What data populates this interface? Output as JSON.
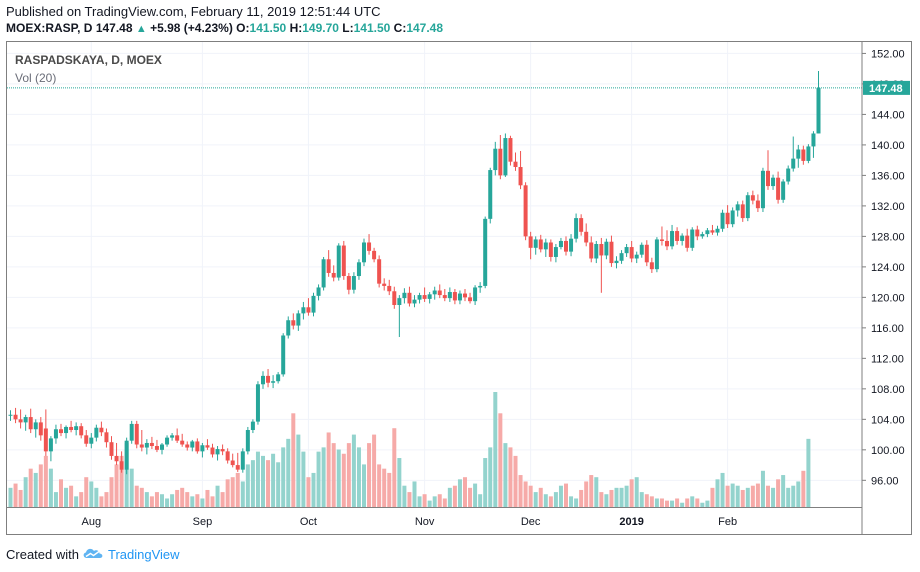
{
  "header": {
    "published": "Published on TradingView.com, February 11, 2019 12:51:44 UTC",
    "symbol": "MOEX:RASP, D",
    "last": "147.48",
    "change_arrow": "▲",
    "change": "+5.98 (+4.23%)",
    "o_label": "O:",
    "o": "141.50",
    "h_label": "H:",
    "h": "149.70",
    "l_label": "L:",
    "l": "141.50",
    "c_label": "C:",
    "c": "147.48"
  },
  "footer": {
    "created_with": "Created with",
    "brand": "TradingView",
    "logo_icon": "tradingview-cloud-icon"
  },
  "colors": {
    "up": "#26a69a",
    "down": "#ef5350",
    "up_volume": "#93d3cd",
    "down_volume": "#f6aaa8",
    "grid": "#f0f3fa",
    "last_price_line": "#26a69a"
  },
  "chart_data": {
    "type": "candlestick",
    "title": "RASPADSKAYA, D, MOEX",
    "indicator": "Vol (20)",
    "y_ticks": [
      "96.00",
      "100.00",
      "104.00",
      "108.00",
      "112.00",
      "116.00",
      "120.00",
      "124.00",
      "128.00",
      "132.00",
      "136.00",
      "140.00",
      "144.00",
      "148.00",
      "152.00"
    ],
    "ylim": [
      92.5,
      153.5
    ],
    "last_price_label": "147.48",
    "last_price": 147.48,
    "x_labels": [
      {
        "label": "Aug",
        "index": 16
      },
      {
        "label": "Sep",
        "index": 38
      },
      {
        "label": "Oct",
        "index": 59
      },
      {
        "label": "Nov",
        "index": 82
      },
      {
        "label": "Dec",
        "index": 103
      },
      {
        "label": "2019",
        "index": 123,
        "bold": true
      },
      {
        "label": "Feb",
        "index": 142
      }
    ],
    "candles": [
      {
        "o": 104.5,
        "h": 105.2,
        "l": 103.8,
        "c": 104.6
      },
      {
        "o": 104.6,
        "h": 105.5,
        "l": 103.5,
        "c": 104.0
      },
      {
        "o": 104.0,
        "h": 105.3,
        "l": 102.8,
        "c": 103.6
      },
      {
        "o": 103.6,
        "h": 104.6,
        "l": 102.5,
        "c": 104.3
      },
      {
        "o": 104.3,
        "h": 105.4,
        "l": 102.2,
        "c": 102.7
      },
      {
        "o": 102.7,
        "h": 104.0,
        "l": 101.6,
        "c": 103.6
      },
      {
        "o": 103.6,
        "h": 104.3,
        "l": 101.2,
        "c": 101.9
      },
      {
        "o": 102.8,
        "h": 105.3,
        "l": 99.2,
        "c": 99.8
      },
      {
        "o": 99.8,
        "h": 101.8,
        "l": 98.5,
        "c": 101.5
      },
      {
        "o": 101.5,
        "h": 103.3,
        "l": 100.8,
        "c": 102.7
      },
      {
        "o": 102.7,
        "h": 103.4,
        "l": 101.8,
        "c": 102.2
      },
      {
        "o": 102.2,
        "h": 103.2,
        "l": 101.5,
        "c": 103.0
      },
      {
        "o": 103.0,
        "h": 103.8,
        "l": 102.3,
        "c": 102.6
      },
      {
        "o": 102.6,
        "h": 103.6,
        "l": 101.9,
        "c": 103.1
      },
      {
        "o": 103.1,
        "h": 103.5,
        "l": 101.5,
        "c": 101.9
      },
      {
        "o": 101.9,
        "h": 102.6,
        "l": 100.4,
        "c": 100.8
      },
      {
        "o": 100.8,
        "h": 102.2,
        "l": 100.2,
        "c": 101.6
      },
      {
        "o": 101.6,
        "h": 103.3,
        "l": 101.1,
        "c": 102.9
      },
      {
        "o": 102.9,
        "h": 103.7,
        "l": 101.8,
        "c": 102.3
      },
      {
        "o": 102.3,
        "h": 102.8,
        "l": 100.3,
        "c": 101.0
      },
      {
        "o": 101.0,
        "h": 101.8,
        "l": 98.7,
        "c": 99.2
      },
      {
        "o": 99.2,
        "h": 100.9,
        "l": 98.0,
        "c": 98.5
      },
      {
        "o": 98.5,
        "h": 99.8,
        "l": 97.0,
        "c": 97.4
      },
      {
        "o": 97.4,
        "h": 101.6,
        "l": 96.8,
        "c": 101.2
      },
      {
        "o": 101.2,
        "h": 103.8,
        "l": 100.8,
        "c": 103.4
      },
      {
        "o": 103.4,
        "h": 103.8,
        "l": 100.2,
        "c": 100.7
      },
      {
        "o": 100.7,
        "h": 102.6,
        "l": 99.8,
        "c": 100.3
      },
      {
        "o": 100.3,
        "h": 101.4,
        "l": 99.4,
        "c": 100.9
      },
      {
        "o": 100.9,
        "h": 101.7,
        "l": 100.1,
        "c": 100.5
      },
      {
        "o": 100.5,
        "h": 101.3,
        "l": 99.7,
        "c": 100.0
      },
      {
        "o": 100.0,
        "h": 100.9,
        "l": 99.4,
        "c": 100.7
      },
      {
        "o": 100.7,
        "h": 101.9,
        "l": 100.4,
        "c": 101.6
      },
      {
        "o": 101.6,
        "h": 102.2,
        "l": 101.2,
        "c": 101.9
      },
      {
        "o": 101.9,
        "h": 102.8,
        "l": 100.9,
        "c": 101.2
      },
      {
        "o": 101.2,
        "h": 102.1,
        "l": 100.4,
        "c": 100.7
      },
      {
        "o": 100.7,
        "h": 101.1,
        "l": 99.9,
        "c": 100.3
      },
      {
        "o": 100.3,
        "h": 101.3,
        "l": 99.8,
        "c": 101.1
      },
      {
        "o": 101.1,
        "h": 101.5,
        "l": 99.5,
        "c": 99.8
      },
      {
        "o": 99.8,
        "h": 100.9,
        "l": 99.0,
        "c": 100.6
      },
      {
        "o": 100.6,
        "h": 101.4,
        "l": 100.0,
        "c": 100.3
      },
      {
        "o": 100.3,
        "h": 100.8,
        "l": 99.0,
        "c": 99.4
      },
      {
        "o": 99.4,
        "h": 100.5,
        "l": 98.6,
        "c": 100.1
      },
      {
        "o": 100.1,
        "h": 100.7,
        "l": 99.3,
        "c": 99.8
      },
      {
        "o": 99.8,
        "h": 100.2,
        "l": 98.2,
        "c": 98.6
      },
      {
        "o": 98.6,
        "h": 99.5,
        "l": 97.7,
        "c": 98.0
      },
      {
        "o": 98.0,
        "h": 99.6,
        "l": 97.1,
        "c": 97.4
      },
      {
        "o": 97.4,
        "h": 100.2,
        "l": 97.0,
        "c": 99.8
      },
      {
        "o": 99.8,
        "h": 103.0,
        "l": 99.4,
        "c": 102.6
      },
      {
        "o": 102.6,
        "h": 104.0,
        "l": 102.2,
        "c": 103.7
      },
      {
        "o": 103.7,
        "h": 109.0,
        "l": 103.3,
        "c": 108.6
      },
      {
        "o": 108.6,
        "h": 110.3,
        "l": 108.0,
        "c": 109.7
      },
      {
        "o": 109.7,
        "h": 110.6,
        "l": 108.2,
        "c": 108.8
      },
      {
        "o": 108.8,
        "h": 109.8,
        "l": 108.1,
        "c": 109.0
      },
      {
        "o": 109.0,
        "h": 110.2,
        "l": 108.7,
        "c": 109.9
      },
      {
        "o": 109.9,
        "h": 115.3,
        "l": 109.6,
        "c": 115.0
      },
      {
        "o": 115.0,
        "h": 117.5,
        "l": 114.6,
        "c": 117.0
      },
      {
        "o": 117.0,
        "h": 117.9,
        "l": 115.8,
        "c": 116.3
      },
      {
        "o": 116.3,
        "h": 118.3,
        "l": 115.6,
        "c": 117.9
      },
      {
        "o": 117.9,
        "h": 119.4,
        "l": 117.1,
        "c": 118.7
      },
      {
        "o": 118.7,
        "h": 119.9,
        "l": 117.6,
        "c": 118.0
      },
      {
        "o": 118.0,
        "h": 120.6,
        "l": 117.5,
        "c": 120.2
      },
      {
        "o": 120.2,
        "h": 121.7,
        "l": 119.6,
        "c": 121.3
      },
      {
        "o": 121.3,
        "h": 125.3,
        "l": 120.9,
        "c": 125.0
      },
      {
        "o": 125.0,
        "h": 126.2,
        "l": 122.7,
        "c": 123.2
      },
      {
        "o": 123.2,
        "h": 124.2,
        "l": 122.1,
        "c": 122.6
      },
      {
        "o": 122.6,
        "h": 127.1,
        "l": 122.2,
        "c": 126.8
      },
      {
        "o": 126.8,
        "h": 127.4,
        "l": 122.3,
        "c": 122.8
      },
      {
        "o": 122.8,
        "h": 123.2,
        "l": 120.4,
        "c": 121.0
      },
      {
        "o": 121.0,
        "h": 123.3,
        "l": 120.5,
        "c": 122.8
      },
      {
        "o": 122.8,
        "h": 125.0,
        "l": 122.3,
        "c": 124.6
      },
      {
        "o": 124.6,
        "h": 127.7,
        "l": 124.1,
        "c": 127.2
      },
      {
        "o": 127.2,
        "h": 128.3,
        "l": 125.6,
        "c": 126.1
      },
      {
        "o": 126.1,
        "h": 126.5,
        "l": 124.6,
        "c": 125.0
      },
      {
        "o": 125.0,
        "h": 125.5,
        "l": 121.3,
        "c": 121.8
      },
      {
        "o": 121.8,
        "h": 122.5,
        "l": 120.9,
        "c": 121.5
      },
      {
        "o": 121.5,
        "h": 122.3,
        "l": 120.3,
        "c": 120.8
      },
      {
        "o": 120.8,
        "h": 121.4,
        "l": 118.5,
        "c": 119.0
      },
      {
        "o": 119.0,
        "h": 120.3,
        "l": 114.8,
        "c": 119.9
      },
      {
        "o": 119.9,
        "h": 121.2,
        "l": 119.2,
        "c": 120.6
      },
      {
        "o": 120.6,
        "h": 121.4,
        "l": 118.8,
        "c": 119.2
      },
      {
        "o": 119.2,
        "h": 120.3,
        "l": 118.7,
        "c": 119.7
      },
      {
        "o": 119.7,
        "h": 120.6,
        "l": 119.2,
        "c": 120.3
      },
      {
        "o": 120.3,
        "h": 121.3,
        "l": 119.4,
        "c": 119.8
      },
      {
        "o": 119.8,
        "h": 120.7,
        "l": 119.2,
        "c": 120.4
      },
      {
        "o": 120.4,
        "h": 121.4,
        "l": 119.7,
        "c": 120.9
      },
      {
        "o": 120.9,
        "h": 121.7,
        "l": 119.9,
        "c": 120.3
      },
      {
        "o": 120.3,
        "h": 121.1,
        "l": 119.5,
        "c": 119.9
      },
      {
        "o": 119.9,
        "h": 121.3,
        "l": 119.4,
        "c": 120.7
      },
      {
        "o": 120.7,
        "h": 121.1,
        "l": 119.1,
        "c": 119.6
      },
      {
        "o": 119.6,
        "h": 120.9,
        "l": 119.1,
        "c": 120.5
      },
      {
        "o": 120.5,
        "h": 121.1,
        "l": 119.5,
        "c": 120.0
      },
      {
        "o": 120.0,
        "h": 120.6,
        "l": 119.2,
        "c": 119.5
      },
      {
        "o": 119.5,
        "h": 121.6,
        "l": 119.0,
        "c": 121.3
      },
      {
        "o": 121.3,
        "h": 122.0,
        "l": 120.6,
        "c": 121.5
      },
      {
        "o": 121.5,
        "h": 130.6,
        "l": 121.2,
        "c": 130.3
      },
      {
        "o": 130.3,
        "h": 137.0,
        "l": 129.7,
        "c": 136.7
      },
      {
        "o": 136.7,
        "h": 140.4,
        "l": 136.0,
        "c": 139.5
      },
      {
        "o": 139.5,
        "h": 141.3,
        "l": 135.5,
        "c": 136.0
      },
      {
        "o": 136.0,
        "h": 141.5,
        "l": 135.8,
        "c": 140.9
      },
      {
        "o": 140.9,
        "h": 141.2,
        "l": 137.3,
        "c": 137.8
      },
      {
        "o": 137.8,
        "h": 139.0,
        "l": 136.6,
        "c": 137.1
      },
      {
        "o": 137.1,
        "h": 139.2,
        "l": 134.2,
        "c": 134.7
      },
      {
        "o": 134.7,
        "h": 135.1,
        "l": 127.5,
        "c": 128.0
      },
      {
        "o": 128.0,
        "h": 128.6,
        "l": 125.0,
        "c": 126.5
      },
      {
        "o": 126.5,
        "h": 128.0,
        "l": 125.6,
        "c": 127.6
      },
      {
        "o": 127.6,
        "h": 128.2,
        "l": 125.9,
        "c": 126.3
      },
      {
        "o": 126.3,
        "h": 127.7,
        "l": 125.3,
        "c": 127.2
      },
      {
        "o": 127.2,
        "h": 127.6,
        "l": 124.7,
        "c": 125.3
      },
      {
        "o": 125.3,
        "h": 127.0,
        "l": 124.6,
        "c": 126.6
      },
      {
        "o": 126.6,
        "h": 127.8,
        "l": 126.3,
        "c": 127.4
      },
      {
        "o": 127.4,
        "h": 128.0,
        "l": 125.5,
        "c": 126.0
      },
      {
        "o": 126.0,
        "h": 128.3,
        "l": 125.4,
        "c": 127.7
      },
      {
        "o": 127.7,
        "h": 131.0,
        "l": 127.2,
        "c": 130.4
      },
      {
        "o": 130.4,
        "h": 130.9,
        "l": 128.1,
        "c": 128.6
      },
      {
        "o": 128.6,
        "h": 129.7,
        "l": 126.7,
        "c": 127.2
      },
      {
        "o": 127.2,
        "h": 128.0,
        "l": 124.6,
        "c": 125.1
      },
      {
        "o": 125.1,
        "h": 127.4,
        "l": 124.5,
        "c": 127.0
      },
      {
        "o": 127.0,
        "h": 127.8,
        "l": 120.6,
        "c": 125.5
      },
      {
        "o": 125.5,
        "h": 127.7,
        "l": 125.0,
        "c": 127.3
      },
      {
        "o": 127.3,
        "h": 128.1,
        "l": 124.0,
        "c": 124.5
      },
      {
        "o": 124.5,
        "h": 125.4,
        "l": 123.8,
        "c": 124.8
      },
      {
        "o": 124.8,
        "h": 126.2,
        "l": 124.4,
        "c": 125.8
      },
      {
        "o": 125.8,
        "h": 127.0,
        "l": 125.3,
        "c": 126.6
      },
      {
        "o": 126.6,
        "h": 127.4,
        "l": 124.6,
        "c": 125.1
      },
      {
        "o": 125.1,
        "h": 126.0,
        "l": 124.5,
        "c": 125.6
      },
      {
        "o": 125.6,
        "h": 127.2,
        "l": 125.2,
        "c": 126.9
      },
      {
        "o": 126.9,
        "h": 127.5,
        "l": 124.1,
        "c": 124.6
      },
      {
        "o": 124.6,
        "h": 125.2,
        "l": 123.2,
        "c": 123.7
      },
      {
        "o": 123.7,
        "h": 127.9,
        "l": 123.3,
        "c": 127.6
      },
      {
        "o": 127.6,
        "h": 129.3,
        "l": 126.8,
        "c": 127.4
      },
      {
        "o": 127.4,
        "h": 128.8,
        "l": 126.2,
        "c": 126.7
      },
      {
        "o": 126.7,
        "h": 129.5,
        "l": 126.3,
        "c": 128.7
      },
      {
        "o": 128.7,
        "h": 129.2,
        "l": 126.9,
        "c": 127.4
      },
      {
        "o": 127.4,
        "h": 128.4,
        "l": 126.8,
        "c": 128.1
      },
      {
        "o": 128.1,
        "h": 129.0,
        "l": 126.0,
        "c": 126.5
      },
      {
        "o": 126.5,
        "h": 129.2,
        "l": 126.1,
        "c": 128.9
      },
      {
        "o": 128.9,
        "h": 129.4,
        "l": 127.5,
        "c": 128.0
      },
      {
        "o": 128.0,
        "h": 128.6,
        "l": 127.7,
        "c": 128.3
      },
      {
        "o": 128.3,
        "h": 129.1,
        "l": 127.9,
        "c": 128.8
      },
      {
        "o": 128.8,
        "h": 129.5,
        "l": 128.2,
        "c": 128.5
      },
      {
        "o": 128.5,
        "h": 129.4,
        "l": 128.1,
        "c": 129.0
      },
      {
        "o": 129.0,
        "h": 131.5,
        "l": 128.6,
        "c": 131.1
      },
      {
        "o": 131.1,
        "h": 132.1,
        "l": 129.1,
        "c": 129.6
      },
      {
        "o": 129.6,
        "h": 131.8,
        "l": 129.2,
        "c": 131.4
      },
      {
        "o": 131.4,
        "h": 132.6,
        "l": 130.6,
        "c": 132.2
      },
      {
        "o": 132.2,
        "h": 132.7,
        "l": 129.9,
        "c": 130.4
      },
      {
        "o": 130.4,
        "h": 133.8,
        "l": 130.0,
        "c": 133.4
      },
      {
        "o": 133.4,
        "h": 134.0,
        "l": 132.2,
        "c": 132.7
      },
      {
        "o": 132.7,
        "h": 133.5,
        "l": 131.2,
        "c": 131.7
      },
      {
        "o": 131.7,
        "h": 137.0,
        "l": 131.2,
        "c": 136.6
      },
      {
        "o": 136.6,
        "h": 139.3,
        "l": 134.1,
        "c": 134.6
      },
      {
        "o": 134.6,
        "h": 136.1,
        "l": 134.1,
        "c": 135.7
      },
      {
        "o": 135.7,
        "h": 136.5,
        "l": 132.3,
        "c": 132.8
      },
      {
        "o": 132.8,
        "h": 135.5,
        "l": 132.4,
        "c": 135.2
      },
      {
        "o": 135.2,
        "h": 137.3,
        "l": 134.8,
        "c": 136.9
      },
      {
        "o": 136.9,
        "h": 141.1,
        "l": 136.5,
        "c": 138.2
      },
      {
        "o": 138.2,
        "h": 140.0,
        "l": 137.0,
        "c": 139.4
      },
      {
        "o": 139.4,
        "h": 139.9,
        "l": 137.4,
        "c": 137.9
      },
      {
        "o": 137.9,
        "h": 140.1,
        "l": 137.6,
        "c": 139.8
      },
      {
        "o": 139.8,
        "h": 141.8,
        "l": 138.3,
        "c": 141.5
      },
      {
        "o": 141.5,
        "h": 149.7,
        "l": 141.5,
        "c": 147.48
      }
    ],
    "volume": [
      0.09,
      0.11,
      0.08,
      0.14,
      0.18,
      0.16,
      0.2,
      0.24,
      0.18,
      0.07,
      0.13,
      0.09,
      0.1,
      0.05,
      0.07,
      0.14,
      0.12,
      0.09,
      0.05,
      0.07,
      0.14,
      0.2,
      0.24,
      0.3,
      0.18,
      0.1,
      0.09,
      0.07,
      0.05,
      0.07,
      0.06,
      0.04,
      0.06,
      0.08,
      0.09,
      0.07,
      0.05,
      0.06,
      0.04,
      0.08,
      0.05,
      0.1,
      0.07,
      0.13,
      0.14,
      0.16,
      0.12,
      0.2,
      0.22,
      0.26,
      0.24,
      0.22,
      0.25,
      0.21,
      0.28,
      0.32,
      0.44,
      0.34,
      0.26,
      0.14,
      0.16,
      0.26,
      0.28,
      0.35,
      0.3,
      0.27,
      0.25,
      0.3,
      0.34,
      0.28,
      0.2,
      0.3,
      0.34,
      0.2,
      0.18,
      0.16,
      0.37,
      0.23,
      0.1,
      0.07,
      0.12,
      0.05,
      0.06,
      0.03,
      0.05,
      0.06,
      0.04,
      0.09,
      0.1,
      0.13,
      0.14,
      0.09,
      0.11,
      0.06,
      0.23,
      0.28,
      0.54,
      0.44,
      0.3,
      0.28,
      0.24,
      0.15,
      0.12,
      0.1,
      0.07,
      0.09,
      0.06,
      0.05,
      0.07,
      0.1,
      0.11,
      0.05,
      0.04,
      0.08,
      0.12,
      0.15,
      0.14,
      0.07,
      0.06,
      0.08,
      0.09,
      0.09,
      0.1,
      0.13,
      0.14,
      0.07,
      0.06,
      0.05,
      0.04,
      0.04,
      0.03,
      0.03,
      0.04,
      0.02,
      0.04,
      0.05,
      0.04,
      0.02,
      0.03,
      0.09,
      0.13,
      0.16,
      0.1,
      0.11,
      0.1,
      0.08,
      0.09,
      0.1,
      0.11,
      0.17,
      0.1,
      0.09,
      0.13,
      0.15,
      0.09,
      0.1,
      0.12,
      0.17,
      0.32
    ]
  }
}
